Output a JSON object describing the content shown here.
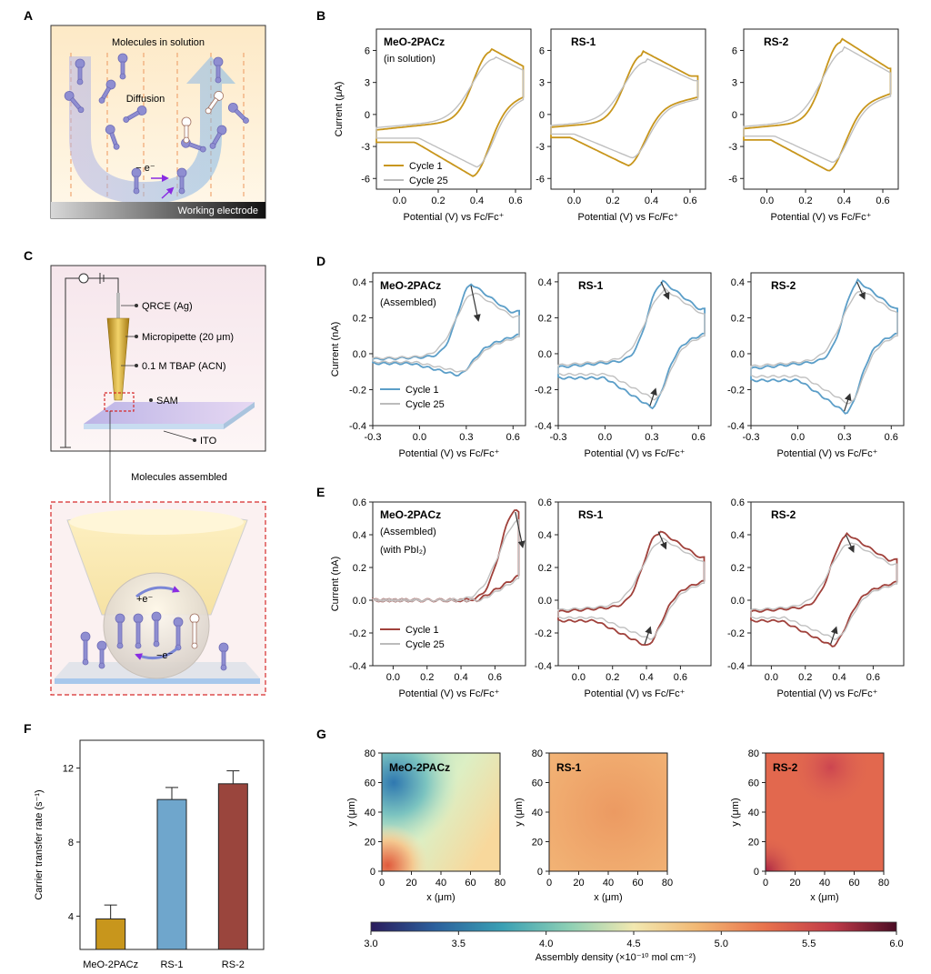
{
  "figure": {
    "panels": {
      "A": {
        "letter": "A",
        "top_label": "Molecules in solution",
        "diffusion_label": "Diffusion",
        "electron_label": "− e⁻",
        "electrode_label": "Working electrode"
      },
      "B": {
        "letter": "B"
      },
      "C": {
        "letter": "C",
        "labels": [
          "QRCE (Ag)",
          "Micropipette (20 μm)",
          "0.1 M TBAP (ACN)",
          "SAM",
          "ITO"
        ],
        "assembled_label": "Molecules assembled",
        "plus_e": "+e⁻",
        "minus_e": "−e⁻"
      },
      "D": {
        "letter": "D"
      },
      "E": {
        "letter": "E"
      },
      "F": {
        "letter": "F"
      },
      "G": {
        "letter": "G"
      }
    },
    "colors": {
      "gold": "#c8961c",
      "blue": "#5b9ec8",
      "red": "#a0413b",
      "grey": "#bbbbbb",
      "light_grey": "#c8c8c8",
      "molecule": "#8f8ed1",
      "dashed_red": "#d62a2a"
    }
  },
  "chart_data": [
    {
      "id": "B",
      "type": "line",
      "xlabel": "Potential (V) vs Fc/Fc⁺",
      "ylabel": "Current (μA)",
      "xlim": [
        -0.12,
        0.68
      ],
      "ylim": [
        -7,
        8
      ],
      "xticks": [
        "0.0",
        "0.2",
        "0.4",
        "0.6"
      ],
      "yticks": [
        "-6",
        "-3",
        "0",
        "3",
        "6"
      ],
      "color": "#c8961c",
      "legend": [
        "Cycle 1",
        "Cycle 25"
      ],
      "subplots": [
        {
          "title": "MeO-2PACz",
          "subtitle": "(in solution)",
          "peak_anodic": [
            0.47,
            6.2
          ],
          "peak_cathodic": [
            0.38,
            -5.8
          ]
        },
        {
          "title": "RS-1",
          "subtitle": "",
          "peak_anodic": [
            0.35,
            6.0
          ],
          "peak_cathodic": [
            0.28,
            -4.8
          ]
        },
        {
          "title": "RS-2",
          "subtitle": "",
          "peak_anodic": [
            0.38,
            7.2
          ],
          "peak_cathodic": [
            0.32,
            -5.3
          ]
        }
      ]
    },
    {
      "id": "D",
      "type": "line",
      "xlabel": "Potential (V) vs Fc/Fc⁺",
      "ylabel": "Current (nA)",
      "xlim": [
        -0.3,
        0.68
      ],
      "ylim": [
        -0.4,
        0.45
      ],
      "xticks": [
        "-0.3",
        "0.0",
        "0.3",
        "0.6"
      ],
      "yticks": [
        "-0.4",
        "-0.2",
        "0.0",
        "0.2",
        "0.4"
      ],
      "color": "#5b9ec8",
      "legend": [
        "Cycle 1",
        "Cycle 25"
      ],
      "subplots": [
        {
          "title": "MeO-2PACz",
          "subtitle": "(Assembled)",
          "peak_anodic": [
            0.33,
            0.39
          ],
          "peak_cathodic": [
            0.25,
            -0.12
          ]
        },
        {
          "title": "RS-1",
          "subtitle": "",
          "peak_anodic": [
            0.36,
            0.41
          ],
          "peak_cathodic": [
            0.3,
            -0.3
          ]
        },
        {
          "title": "RS-2",
          "subtitle": "",
          "peak_anodic": [
            0.38,
            0.41
          ],
          "peak_cathodic": [
            0.31,
            -0.33
          ]
        }
      ]
    },
    {
      "id": "E",
      "type": "line",
      "xlabel": "Potential (V) vs Fc/Fc⁺",
      "ylabel": "Current (nA)",
      "xlim": [
        -0.12,
        0.78
      ],
      "ylim": [
        -0.4,
        0.6
      ],
      "xticks": [
        "0.0",
        "0.2",
        "0.4",
        "0.6"
      ],
      "yticks": [
        "-0.4",
        "-0.2",
        "0.0",
        "0.2",
        "0.4",
        "0.6"
      ],
      "color": "#a0413b",
      "legend": [
        "Cycle 1",
        "Cycle 25"
      ],
      "subplots": [
        {
          "title": "MeO-2PACz",
          "subtitle": "(Assembled)",
          "subtitle2": "(with PbI₂)",
          "peak_anodic": [
            0.72,
            0.55
          ],
          "peak_cathodic": [
            0.5,
            0.0
          ]
        },
        {
          "title": "RS-1",
          "subtitle": "",
          "peak_anodic": [
            0.47,
            0.43
          ],
          "peak_cathodic": [
            0.4,
            -0.28
          ]
        },
        {
          "title": "RS-2",
          "subtitle": "",
          "peak_anodic": [
            0.44,
            0.41
          ],
          "peak_cathodic": [
            0.36,
            -0.28
          ]
        }
      ]
    },
    {
      "id": "F",
      "type": "bar",
      "ylabel": "Carrier transfer rate (s⁻¹)",
      "categories": [
        "MeO-2PACz",
        "RS-1",
        "RS-2"
      ],
      "values": [
        3.85,
        10.3,
        11.15
      ],
      "errors": [
        0.75,
        0.65,
        0.7
      ],
      "colors": [
        "#c8961c",
        "#6fa6cc",
        "#9a453d"
      ],
      "ylim": [
        2.2,
        13.5
      ],
      "yticks": [
        "4",
        "8",
        "12"
      ]
    },
    {
      "id": "G",
      "type": "heatmap",
      "xlabel": "x (μm)",
      "ylabel": "y (μm)",
      "xlim": [
        0,
        80
      ],
      "ylim": [
        0,
        80
      ],
      "ticks": [
        "0",
        "20",
        "40",
        "60",
        "80"
      ],
      "subplots": [
        {
          "title": "MeO-2PACz",
          "mean": 4.4
        },
        {
          "title": "RS-1",
          "mean": 5.0
        },
        {
          "title": "RS-2",
          "mean": 5.2
        }
      ],
      "colorbar": {
        "label": "Assembly density (×10⁻¹⁰ mol cm⁻²)",
        "min": 3.0,
        "max": 6.0,
        "ticks": [
          "3.0",
          "3.5",
          "4.0",
          "4.5",
          "5.0",
          "5.5",
          "6.0"
        ]
      }
    }
  ]
}
